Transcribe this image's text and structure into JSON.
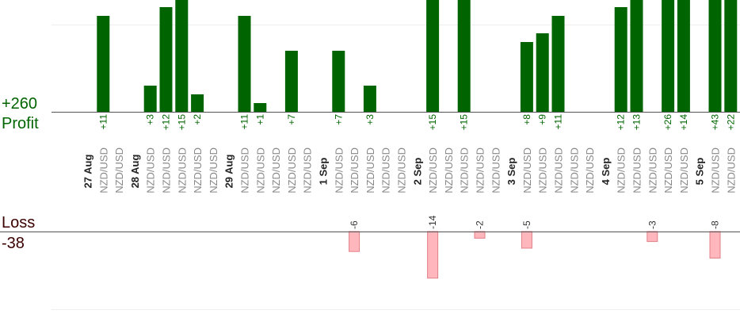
{
  "summary": {
    "profit_total": "+260",
    "profit_label": "Profit",
    "loss_label": "Loss",
    "loss_total": "-38"
  },
  "colors": {
    "profit_bar": "#006400",
    "profit_text": "#006400",
    "loss_bar_fill": "#ffb6bc",
    "loss_bar_stroke": "#e08088",
    "loss_text": "#3a0000",
    "date_text": "#222222",
    "pair_text": "#888888",
    "axis": "#555555",
    "grid": "#eeeeee"
  },
  "chart_data": {
    "type": "bar",
    "categories": [
      "27 Aug",
      "NZD/USD",
      "NZD/USD",
      "28 Aug",
      "NZD/USD",
      "NZD/USD",
      "NZD/USD",
      "NZD/USD",
      "NZD/USD",
      "29 Aug",
      "NZD/USD",
      "NZD/USD",
      "NZD/USD",
      "NZD/USD",
      "NZD/USD",
      "1 Sep",
      "NZD/USD",
      "NZD/USD",
      "NZD/USD",
      "NZD/USD",
      "NZD/USD",
      "2 Sep",
      "NZD/USD",
      "NZD/USD",
      "NZD/USD",
      "NZD/USD",
      "NZD/USD",
      "3 Sep",
      "NZD/USD",
      "NZD/USD",
      "NZD/USD",
      "NZD/USD",
      "NZD/USD",
      "4 Sep",
      "NZD/USD",
      "NZD/USD",
      "NZD/USD",
      "NZD/USD",
      "NZD/USD",
      "5 Sep",
      "NZD/USD",
      "NZD/USD",
      "NZD/USD"
    ],
    "category_kind": [
      "date",
      "pair",
      "pair",
      "date",
      "pair",
      "pair",
      "pair",
      "pair",
      "pair",
      "date",
      "pair",
      "pair",
      "pair",
      "pair",
      "pair",
      "date",
      "pair",
      "pair",
      "pair",
      "pair",
      "pair",
      "date",
      "pair",
      "pair",
      "pair",
      "pair",
      "pair",
      "date",
      "pair",
      "pair",
      "pair",
      "pair",
      "pair",
      "date",
      "pair",
      "pair",
      "pair",
      "pair",
      "pair",
      "date",
      "pair",
      "pair",
      "pair"
    ],
    "series": [
      {
        "name": "Profit",
        "values": [
          null,
          11,
          null,
          null,
          3,
          12,
          15,
          2,
          null,
          null,
          11,
          1,
          null,
          7,
          null,
          null,
          7,
          null,
          3,
          null,
          null,
          null,
          15,
          null,
          15,
          null,
          null,
          null,
          8,
          9,
          11,
          null,
          null,
          null,
          12,
          13,
          null,
          26,
          14,
          null,
          43,
          22,
          null
        ],
        "labels": [
          "",
          "+11",
          "",
          "",
          "+3",
          "+12",
          "+15",
          "+2",
          "",
          "",
          "+11",
          "+1",
          "",
          "+7",
          "",
          "",
          "+7",
          "",
          "+3",
          "",
          "",
          "",
          "+15",
          "",
          "+15",
          "",
          "",
          "",
          "+8",
          "+9",
          "+11",
          "",
          "",
          "",
          "+12",
          "+13",
          "",
          "+26",
          "+14",
          "",
          "+43",
          "+22",
          ""
        ]
      },
      {
        "name": "Loss",
        "values": [
          null,
          null,
          null,
          null,
          null,
          null,
          null,
          null,
          null,
          null,
          null,
          null,
          null,
          null,
          null,
          null,
          null,
          -6,
          null,
          null,
          null,
          null,
          -14,
          null,
          null,
          -2,
          null,
          null,
          -5,
          null,
          null,
          null,
          null,
          null,
          null,
          null,
          -3,
          null,
          null,
          null,
          -8,
          null,
          null
        ],
        "labels": [
          "",
          "",
          "",
          "",
          "",
          "",
          "",
          "",
          "",
          "",
          "",
          "",
          "",
          "",
          "",
          "",
          "",
          "-6",
          "",
          "",
          "",
          "",
          "-14",
          "",
          "",
          "-2",
          "",
          "",
          "-5",
          "",
          "",
          "",
          "",
          "",
          "",
          "",
          "-3",
          "",
          "",
          "",
          "-8",
          "",
          ""
        ]
      }
    ],
    "profit_axis": {
      "ylim": [
        0,
        12
      ]
    },
    "loss_axis": {
      "ylim": [
        -14,
        0
      ]
    },
    "grid": true
  }
}
